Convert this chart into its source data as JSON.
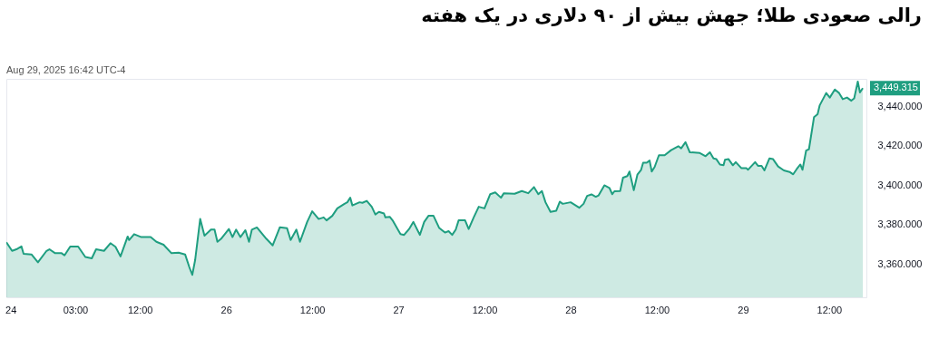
{
  "chart_data": {
    "type": "area",
    "title": "رالی صعودی طلا؛ جهش بیش از ۹۰ دلاری در یک هفته",
    "annotations": [
      "Aug 29, 2025 16:42 UTC-4",
      "3,449.315"
    ],
    "x": [
      "2025-08-24T17:24",
      "2025-08-24T18:12",
      "2025-08-24T18:48",
      "2025-08-24T19:30",
      "2025-08-24T19:48",
      "2025-08-24T20:54",
      "2025-08-24T21:48",
      "2025-08-24T23:00",
      "2025-08-24T23:24",
      "2025-08-25T00:12",
      "2025-08-25T01:06",
      "2025-08-25T01:30",
      "2025-08-25T02:18",
      "2025-08-25T03:24",
      "2025-08-25T04:24",
      "2025-08-25T05:18",
      "2025-08-25T05:54",
      "2025-08-25T07:00",
      "2025-08-25T07:54",
      "2025-08-25T08:36",
      "2025-08-25T09:18",
      "2025-08-25T10:18",
      "2025-08-25T10:30",
      "2025-08-25T11:12",
      "2025-08-25T12:12",
      "2025-08-25T13:30",
      "2025-08-25T14:18",
      "2025-08-25T15:18",
      "2025-08-25T16:24",
      "2025-08-25T17:24",
      "2025-08-25T18:18",
      "2025-08-25T18:54",
      "2025-08-25T19:18",
      "2025-08-25T19:42",
      "2025-08-25T20:24",
      "2025-08-25T21:00",
      "2025-08-25T21:54",
      "2025-08-25T22:24",
      "2025-08-25T22:48",
      "2025-08-25T23:18",
      "2025-08-26T00:24",
      "2025-08-26T00:54",
      "2025-08-26T01:24",
      "2025-08-26T02:00",
      "2025-08-26T02:42",
      "2025-08-26T03:12",
      "2025-08-26T03:36",
      "2025-08-26T04:18",
      "2025-08-26T05:36",
      "2025-08-26T06:30",
      "2025-08-26T07:30",
      "2025-08-26T08:30",
      "2025-08-26T09:00",
      "2025-08-26T09:48",
      "2025-08-26T10:18",
      "2025-08-26T11:18",
      "2025-08-26T12:00",
      "2025-08-26T12:54",
      "2025-08-26T13:36",
      "2025-08-26T14:00",
      "2025-08-26T14:48",
      "2025-08-26T15:30",
      "2025-08-26T16:30",
      "2025-08-26T16:54",
      "2025-08-26T17:18",
      "2025-08-26T17:36",
      "2025-08-26T18:36",
      "2025-08-26T19:00",
      "2025-08-26T19:36",
      "2025-08-26T20:18",
      "2025-08-26T20:48",
      "2025-08-26T21:18",
      "2025-08-26T22:00",
      "2025-08-26T22:12",
      "2025-08-26T22:48",
      "2025-08-26T23:12",
      "2025-08-27T00:18",
      "2025-08-27T00:48",
      "2025-08-27T01:30",
      "2025-08-27T02:06",
      "2025-08-27T03:00",
      "2025-08-27T03:36",
      "2025-08-27T04:12",
      "2025-08-27T04:54",
      "2025-08-27T05:42",
      "2025-08-27T06:30",
      "2025-08-27T07:00",
      "2025-08-27T07:30",
      "2025-08-27T08:00",
      "2025-08-27T08:24",
      "2025-08-27T09:18",
      "2025-08-27T09:48",
      "2025-08-27T10:30",
      "2025-08-27T11:12",
      "2025-08-27T12:00",
      "2025-08-27T12:48",
      "2025-08-27T13:30",
      "2025-08-27T14:18",
      "2025-08-27T14:42",
      "2025-08-27T16:12",
      "2025-08-27T17:12",
      "2025-08-27T18:06",
      "2025-08-27T18:54",
      "2025-08-27T19:30",
      "2025-08-27T20:00",
      "2025-08-27T20:30",
      "2025-08-27T21:12",
      "2025-08-27T22:00",
      "2025-08-27T22:30",
      "2025-08-27T22:54",
      "2025-08-28T00:00",
      "2025-08-28T01:12",
      "2025-08-28T01:48",
      "2025-08-28T02:18",
      "2025-08-28T02:54",
      "2025-08-28T03:30",
      "2025-08-28T03:54",
      "2025-08-28T04:42",
      "2025-08-28T05:24",
      "2025-08-28T05:48",
      "2025-08-28T06:06",
      "2025-08-28T06:54",
      "2025-08-28T07:18",
      "2025-08-28T07:54",
      "2025-08-28T08:12",
      "2025-08-28T08:48",
      "2025-08-28T09:18",
      "2025-08-28T09:48",
      "2025-08-28T10:06",
      "2025-08-28T10:36",
      "2025-08-28T11:00",
      "2025-08-28T11:18",
      "2025-08-28T11:42",
      "2025-08-28T12:18",
      "2025-08-28T13:06",
      "2025-08-28T14:00",
      "2025-08-28T15:00",
      "2025-08-28T15:24",
      "2025-08-28T16:00",
      "2025-08-28T16:36",
      "2025-08-28T18:00",
      "2025-08-28T18:48",
      "2025-08-28T19:24",
      "2025-08-28T19:54",
      "2025-08-28T20:18",
      "2025-08-28T20:48",
      "2025-08-28T21:18",
      "2025-08-28T21:30",
      "2025-08-28T22:00",
      "2025-08-28T22:36",
      "2025-08-28T23:00",
      "2025-08-28T23:48",
      "2025-08-29T00:30",
      "2025-08-29T00:42",
      "2025-08-29T01:42",
      "2025-08-29T02:06",
      "2025-08-29T02:36",
      "2025-08-29T03:00",
      "2025-08-29T03:42",
      "2025-08-29T04:12",
      "2025-08-29T04:54",
      "2025-08-29T05:42",
      "2025-08-29T06:30",
      "2025-08-29T07:00",
      "2025-08-29T07:30",
      "2025-08-29T08:00",
      "2025-08-29T08:18",
      "2025-08-29T08:48",
      "2025-08-29T09:12",
      "2025-08-29T09:54",
      "2025-08-29T10:24",
      "2025-08-29T10:42",
      "2025-08-29T11:36",
      "2025-08-29T12:06",
      "2025-08-29T12:48",
      "2025-08-29T13:24",
      "2025-08-29T13:54",
      "2025-08-29T14:30",
      "2025-08-29T15:06",
      "2025-08-29T15:30",
      "2025-08-29T16:00",
      "2025-08-29T16:18",
      "2025-08-29T16:42"
    ],
    "series": [
      {
        "color": "#1f9e80",
        "values": [
          3371.0,
          3366.6,
          3367.4,
          3368.9,
          3365.1,
          3364.8,
          3360.8,
          3366.6,
          3367.4,
          3365.4,
          3365.4,
          3364.3,
          3368.8,
          3368.8,
          3363.5,
          3362.8,
          3367.4,
          3366.6,
          3370.5,
          3368.7,
          3363.8,
          3373.9,
          3372.1,
          3375.1,
          3373.6,
          3373.6,
          3371.2,
          3369.7,
          3365.4,
          3365.7,
          3364.8,
          3358.2,
          3354.4,
          3362.0,
          3382.8,
          3374.3,
          3377.4,
          3377.4,
          3371.2,
          3372.7,
          3377.7,
          3373.6,
          3377.4,
          3373.6,
          3377.1,
          3371.2,
          3377.4,
          3378.5,
          3372.8,
          3369.4,
          3378.6,
          3378.1,
          3372.1,
          3377.4,
          3371.2,
          3381.3,
          3386.7,
          3382.8,
          3383.6,
          3382.1,
          3384.4,
          3388.2,
          3390.5,
          3391.3,
          3393.6,
          3389.7,
          3391.3,
          3391.0,
          3392.0,
          3389.0,
          3385.1,
          3386.4,
          3385.6,
          3383.6,
          3383.9,
          3382.1,
          3375.1,
          3374.7,
          3377.7,
          3381.3,
          3374.7,
          3381.3,
          3384.4,
          3384.4,
          3378.2,
          3375.9,
          3376.6,
          3374.7,
          3377.4,
          3382.1,
          3382.1,
          3377.7,
          3383.6,
          3389.0,
          3388.2,
          3395.4,
          3396.3,
          3393.6,
          3395.9,
          3395.6,
          3397.0,
          3395.9,
          3399.0,
          3395.4,
          3397.0,
          3391.3,
          3386.4,
          3387.0,
          3391.6,
          3390.5,
          3391.3,
          3388.5,
          3390.5,
          3394.5,
          3395.3,
          3394.1,
          3394.8,
          3399.9,
          3398.6,
          3395.4,
          3396.9,
          3397.0,
          3403.8,
          3404.6,
          3406.9,
          3397.4,
          3405.3,
          3407.6,
          3411.4,
          3411.4,
          3412.5,
          3406.9,
          3409.2,
          3415.2,
          3415.2,
          3417.8,
          3419.8,
          3418.7,
          3421.8,
          3416.7,
          3416.3,
          3414.7,
          3416.7,
          3413.6,
          3413.2,
          3410.5,
          3410.1,
          3412.9,
          3413.2,
          3410.1,
          3411.7,
          3408.6,
          3408.6,
          3407.8,
          3411.7,
          3409.8,
          3409.8,
          3407.5,
          3413.6,
          3413.2,
          3409.5,
          3407.5,
          3406.7,
          3405.5,
          3408.2,
          3410.5,
          3407.8,
          3417.5,
          3418.3,
          3434.5,
          3436.0,
          3440.6,
          3446.8,
          3444.5,
          3448.6,
          3446.8,
          3443.7,
          3444.5,
          3442.9,
          3444.1,
          3452.6,
          3447.1,
          3449.3
        ]
      }
    ],
    "xlim": [
      "2025-08-24T17:24",
      "2025-08-29T17:12"
    ],
    "ylim": [
      3343,
      3454
    ],
    "xticks": [
      {
        "value": "2025-08-24T18:00",
        "label": "24"
      },
      {
        "value": "2025-08-25T03:00",
        "label": "03:00"
      },
      {
        "value": "2025-08-25T12:00",
        "label": "12:00"
      },
      {
        "value": "2025-08-26",
        "label": "26"
      },
      {
        "value": "2025-08-26T12:00",
        "label": "12:00"
      },
      {
        "value": "2025-08-27",
        "label": "27"
      },
      {
        "value": "2025-08-27T12:00",
        "label": "12:00"
      },
      {
        "value": "2025-08-28",
        "label": "28"
      },
      {
        "value": "2025-08-28T12:00",
        "label": "12:00"
      },
      {
        "value": "2025-08-29",
        "label": "29"
      },
      {
        "value": "2025-08-29T12:00",
        "label": "12:00"
      }
    ],
    "yticks": [
      {
        "value": 3360,
        "label": "3,360.000"
      },
      {
        "value": 3380,
        "label": "3,380.000"
      },
      {
        "value": 3400,
        "label": "3,400.000"
      },
      {
        "value": 3420,
        "label": "3,420.000"
      },
      {
        "value": 3440,
        "label": "3,440.000"
      }
    ]
  }
}
